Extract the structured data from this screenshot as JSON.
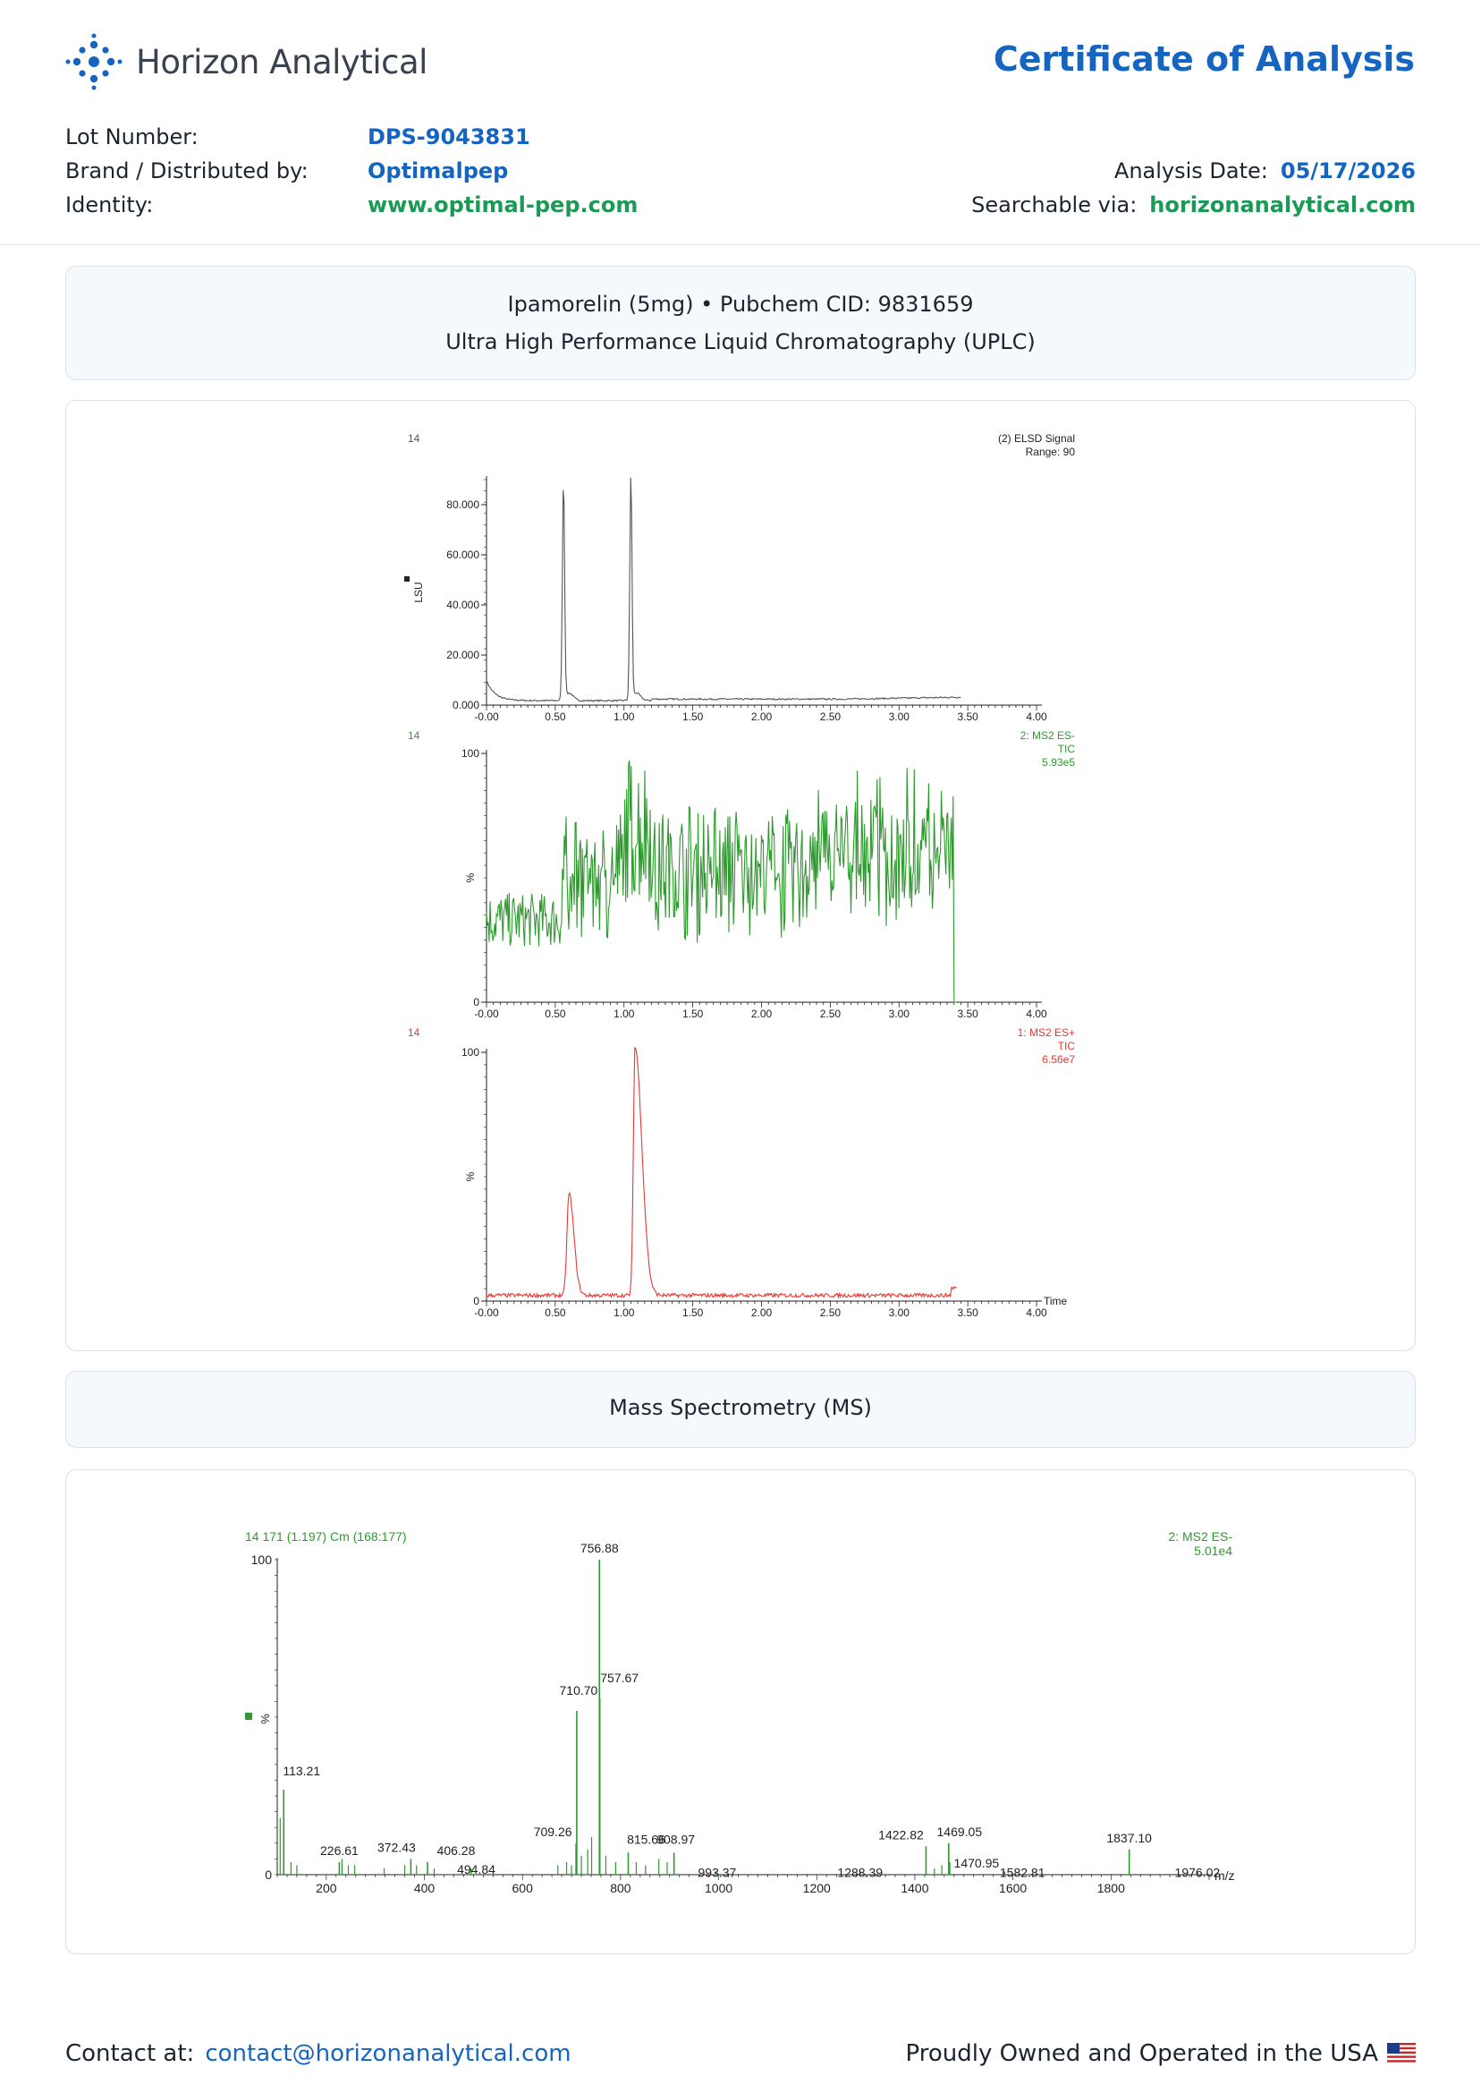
{
  "header": {
    "company": "Horizon Analytical",
    "title": "Certificate of Analysis"
  },
  "meta": {
    "lot_label": "Lot Number:",
    "lot_value": "DPS-9043831",
    "brand_label": "Brand / Distributed by:",
    "brand_value": "Optimalpep",
    "identity_label": "Identity:",
    "identity_value": "www.optimal-pep.com",
    "date_label": "Analysis Date:",
    "date_value": "05/17/2026",
    "search_label": "Searchable via:",
    "search_value": "horizonanalytical.com"
  },
  "uplc_panel": {
    "line1": "Ipamorelin (5mg) • Pubchem CID: 9831659",
    "line2": "Ultra High Performance Liquid Chromatography (UPLC)"
  },
  "ms_panel": {
    "title": "Mass Spectrometry (MS)"
  },
  "footer": {
    "contact_label": "Contact at:",
    "contact_email": "contact@horizonanalytical.com",
    "usa_text": "Proudly Owned and Operated in the USA"
  },
  "colors": {
    "brand_blue": "#1565c0",
    "brand_green": "#1a9a55",
    "elsd": "#555555",
    "ms_neg": "#2e9a2e",
    "ms_pos": "#e53935"
  },
  "chart_data": [
    {
      "type": "line",
      "panel_label": "14",
      "legend": [
        "(2) ELSD Signal",
        "Range: 90"
      ],
      "ylabel": "LSU",
      "xlim": [
        0,
        4
      ],
      "ylim": [
        0,
        90
      ],
      "x_ticks": [
        "-0.00",
        "0.50",
        "1.00",
        "1.50",
        "2.00",
        "2.50",
        "3.00",
        "3.50",
        "4.00"
      ],
      "y_ticks": [
        "0.000",
        "20.000",
        "40.000",
        "60.000",
        "80.000"
      ],
      "y_tick_values": [
        0,
        20,
        40,
        60,
        80
      ],
      "peaks": [
        {
          "x": 0.56,
          "y": 88
        },
        {
          "x": 1.05,
          "y": 90
        }
      ],
      "trace_end": 3.45
    },
    {
      "type": "line",
      "panel_label": "14",
      "legend": [
        "2: MS2 ES-",
        "TIC",
        "5.93e5"
      ],
      "ylabel": "%",
      "xlim": [
        0,
        4
      ],
      "ylim": [
        0,
        100
      ],
      "x_ticks": [
        "-0.00",
        "0.50",
        "1.00",
        "1.50",
        "2.00",
        "2.50",
        "3.00",
        "3.50",
        "4.00"
      ],
      "y_ticks": [
        "0",
        "100"
      ],
      "y_tick_values": [
        0,
        100
      ],
      "trace_end": 3.42
    },
    {
      "type": "line",
      "panel_label": "14",
      "legend": [
        "1: MS2 ES+",
        "TIC",
        "6.56e7"
      ],
      "ylabel": "%",
      "xlabel": "Time",
      "xlim": [
        0,
        4
      ],
      "ylim": [
        0,
        100
      ],
      "x_ticks": [
        "-0.00",
        "0.50",
        "1.00",
        "1.50",
        "2.00",
        "2.50",
        "3.00",
        "3.50",
        "4.00"
      ],
      "y_ticks": [
        "0",
        "100"
      ],
      "y_tick_values": [
        0,
        100
      ],
      "peaks": [
        {
          "x": 0.6,
          "y": 41
        },
        {
          "x": 1.08,
          "y": 100
        }
      ],
      "trace_end": 3.42
    },
    {
      "type": "bar",
      "title": "14 171 (1.197) Cm (168:177)",
      "legend": [
        "2: MS2 ES-",
        "5.01e4"
      ],
      "ylabel": "%",
      "xlabel": "m/z",
      "xlim": [
        100,
        2000
      ],
      "ylim": [
        0,
        100
      ],
      "x_ticks": [
        "200",
        "400",
        "600",
        "800",
        "1000",
        "1200",
        "1400",
        "1600",
        "1800"
      ],
      "x_tick_values": [
        200,
        400,
        600,
        800,
        1000,
        1200,
        1400,
        1600,
        1800
      ],
      "y_ticks": [
        "0",
        "100"
      ],
      "y_tick_values": [
        0,
        100
      ],
      "labeled_peaks": [
        {
          "mz": 113.21,
          "label": "113.21",
          "intensity": 27
        },
        {
          "mz": 226.61,
          "label": "226.61",
          "intensity": 4
        },
        {
          "mz": 372.43,
          "label": "372.43",
          "intensity": 5
        },
        {
          "mz": 406.28,
          "label": "406.28",
          "intensity": 4
        },
        {
          "mz": 494.84,
          "label": "494.84",
          "intensity": 2
        },
        {
          "mz": 709.26,
          "label": "709.26",
          "intensity": 10
        },
        {
          "mz": 710.7,
          "label": "710.70",
          "intensity": 52
        },
        {
          "mz": 756.88,
          "label": "756.88",
          "intensity": 100
        },
        {
          "mz": 757.67,
          "label": "757.67",
          "intensity": 56
        },
        {
          "mz": 815.66,
          "label": "815.66",
          "intensity": 7
        },
        {
          "mz": 908.97,
          "label": "908.97",
          "intensity": 7
        },
        {
          "mz": 993.37,
          "label": "993.37",
          "intensity": 1
        },
        {
          "mz": 1288.39,
          "label": "1288.39",
          "intensity": 1
        },
        {
          "mz": 1422.82,
          "label": "1422.82",
          "intensity": 9
        },
        {
          "mz": 1469.05,
          "label": "1469.05",
          "intensity": 10
        },
        {
          "mz": 1470.95,
          "label": "1470.95",
          "intensity": 4
        },
        {
          "mz": 1582.81,
          "label": "1582.81",
          "intensity": 1
        },
        {
          "mz": 1837.1,
          "label": "1837.10",
          "intensity": 8
        },
        {
          "mz": 1976.02,
          "label": "1976.02",
          "intensity": 1
        }
      ],
      "minor_peaks": [
        {
          "mz": 106,
          "intensity": 18
        },
        {
          "mz": 128,
          "intensity": 4
        },
        {
          "mz": 140,
          "intensity": 3
        },
        {
          "mz": 232,
          "intensity": 5
        },
        {
          "mz": 245,
          "intensity": 3
        },
        {
          "mz": 258,
          "intensity": 3
        },
        {
          "mz": 318,
          "intensity": 2
        },
        {
          "mz": 360,
          "intensity": 3
        },
        {
          "mz": 384,
          "intensity": 3
        },
        {
          "mz": 420,
          "intensity": 2
        },
        {
          "mz": 540,
          "intensity": 1
        },
        {
          "mz": 672,
          "intensity": 3
        },
        {
          "mz": 690,
          "intensity": 4
        },
        {
          "mz": 700,
          "intensity": 3
        },
        {
          "mz": 720,
          "intensity": 6
        },
        {
          "mz": 733,
          "intensity": 8
        },
        {
          "mz": 741,
          "intensity": 12
        },
        {
          "mz": 770,
          "intensity": 6
        },
        {
          "mz": 790,
          "intensity": 4
        },
        {
          "mz": 832,
          "intensity": 4
        },
        {
          "mz": 851,
          "intensity": 3
        },
        {
          "mz": 878,
          "intensity": 5
        },
        {
          "mz": 895,
          "intensity": 4
        },
        {
          "mz": 1440,
          "intensity": 2
        },
        {
          "mz": 1455,
          "intensity": 3
        }
      ]
    }
  ]
}
